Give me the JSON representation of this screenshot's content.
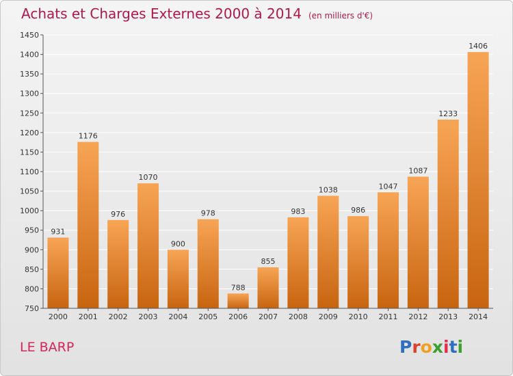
{
  "header": {
    "title": "Achats et Charges Externes 2000 à 2014",
    "subtitle": "(en milliers d'€)"
  },
  "place_label": "LE BARP",
  "logo": {
    "text": "Proxiti",
    "colors": [
      "#2f6fc0",
      "#e0402a",
      "#f0a020",
      "#3aa030",
      "#e03050",
      "#2f6fc0",
      "#3aa030"
    ]
  },
  "colors": {
    "bar_top": "#f7a555",
    "bar_bottom": "#c86410",
    "axis": "#555555",
    "grid": "#ffffff",
    "title": "#b01850"
  },
  "chart_data": {
    "type": "bar",
    "title": "Achats et Charges Externes 2000 à 2014",
    "categories": [
      "2000",
      "2001",
      "2002",
      "2003",
      "2004",
      "2005",
      "2006",
      "2007",
      "2008",
      "2009",
      "2010",
      "2011",
      "2012",
      "2013",
      "2014"
    ],
    "values": [
      931,
      1176,
      976,
      1070,
      900,
      978,
      788,
      855,
      983,
      1038,
      986,
      1047,
      1087,
      1233,
      1406
    ],
    "ylim": [
      750,
      1450
    ],
    "yticks": [
      750,
      800,
      850,
      900,
      950,
      1000,
      1050,
      1100,
      1150,
      1200,
      1250,
      1300,
      1350,
      1400,
      1450
    ],
    "grid": true,
    "xlabel": "",
    "ylabel": ""
  }
}
